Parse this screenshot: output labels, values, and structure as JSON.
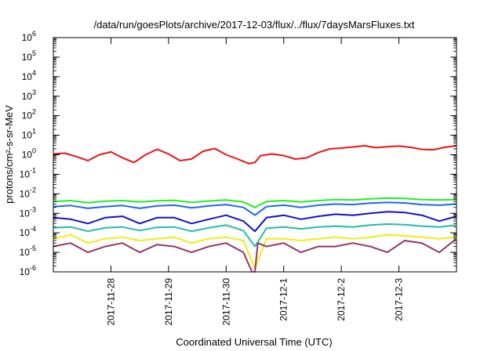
{
  "chart_data": {
    "type": "line",
    "title": "/data/run/goesPlots/archive/2017-12-03/flux/../flux/7daysMarsFluxes.txt",
    "xlabel": "Coordinated Universal Time (UTC)",
    "ylabel": "protons/cm²-s-sr-MeV",
    "yscale": "log",
    "ylim": [
      1e-06,
      1000000.0
    ],
    "xlim": [
      0,
      7
    ],
    "x_tick_values": [
      1,
      2,
      3,
      4,
      5,
      6
    ],
    "x_tick_labels": [
      "2017-11-28",
      "2017-11-29",
      "2017-11-30",
      "2017-12-1",
      "2017-12-2",
      "2017-12-3"
    ],
    "y_tick_exponents": [
      -6,
      -5,
      -4,
      -3,
      -2,
      -1,
      0,
      1,
      2,
      3,
      4,
      5,
      6
    ],
    "grid": false,
    "legend": "none",
    "series": [
      {
        "color": "#ee1111",
        "x": [
          0.0,
          0.2,
          0.4,
          0.6,
          0.8,
          1.0,
          1.2,
          1.4,
          1.6,
          1.8,
          2.0,
          2.2,
          2.4,
          2.6,
          2.8,
          3.0,
          3.2,
          3.4,
          3.5,
          3.6,
          3.8,
          4.0,
          4.2,
          4.4,
          4.6,
          4.8,
          5.0,
          5.2,
          5.4,
          5.6,
          5.8,
          6.0,
          6.2,
          6.4,
          6.6,
          6.8,
          7.0
        ],
        "y": [
          1.1,
          1.2,
          0.8,
          0.5,
          1.0,
          1.4,
          0.7,
          0.4,
          1.0,
          1.9,
          1.1,
          0.5,
          0.6,
          1.5,
          2.1,
          1.0,
          0.6,
          0.35,
          0.4,
          0.9,
          1.1,
          0.9,
          0.6,
          0.7,
          1.3,
          2.0,
          2.2,
          2.5,
          2.9,
          2.3,
          2.6,
          2.8,
          2.4,
          1.9,
          1.8,
          2.4,
          2.9
        ]
      },
      {
        "color": "#22ee22",
        "x": [
          0.0,
          0.3,
          0.6,
          0.9,
          1.2,
          1.5,
          1.8,
          2.1,
          2.4,
          2.7,
          3.0,
          3.3,
          3.5,
          3.7,
          4.0,
          4.3,
          4.6,
          4.9,
          5.2,
          5.5,
          5.8,
          6.1,
          6.4,
          6.7,
          7.0
        ],
        "y": [
          0.004,
          0.0045,
          0.0035,
          0.0042,
          0.0045,
          0.0038,
          0.0044,
          0.0046,
          0.0036,
          0.0043,
          0.0048,
          0.0038,
          0.002,
          0.004,
          0.0045,
          0.0038,
          0.0045,
          0.005,
          0.0048,
          0.0055,
          0.006,
          0.0058,
          0.005,
          0.0048,
          0.005
        ]
      },
      {
        "color": "#2266ee",
        "x": [
          0.0,
          0.3,
          0.6,
          0.9,
          1.2,
          1.5,
          1.8,
          2.1,
          2.4,
          2.7,
          3.0,
          3.3,
          3.5,
          3.7,
          4.0,
          4.3,
          4.6,
          4.9,
          5.2,
          5.5,
          5.8,
          6.1,
          6.4,
          6.7,
          7.0
        ],
        "y": [
          0.0022,
          0.0025,
          0.0018,
          0.0022,
          0.0025,
          0.0018,
          0.0024,
          0.0026,
          0.0019,
          0.0024,
          0.0028,
          0.002,
          0.0008,
          0.0022,
          0.0026,
          0.002,
          0.0026,
          0.003,
          0.0028,
          0.0033,
          0.0036,
          0.0034,
          0.0028,
          0.0026,
          0.003
        ]
      },
      {
        "color": "#1111cc",
        "x": [
          0.0,
          0.3,
          0.6,
          0.9,
          1.2,
          1.5,
          1.8,
          2.1,
          2.4,
          2.7,
          3.0,
          3.3,
          3.5,
          3.7,
          4.0,
          4.3,
          4.6,
          4.9,
          5.2,
          5.5,
          5.8,
          6.1,
          6.4,
          6.7,
          7.0
        ],
        "y": [
          0.0006,
          0.0005,
          0.0003,
          0.0006,
          0.0007,
          0.0003,
          0.0006,
          0.0006,
          0.0003,
          0.0005,
          0.0008,
          0.0004,
          0.00012,
          0.0006,
          0.0008,
          0.0005,
          0.0007,
          0.0009,
          0.0008,
          0.001,
          0.0012,
          0.0011,
          0.0008,
          0.0004,
          0.0007
        ]
      },
      {
        "color": "#22bbaa",
        "x": [
          0.0,
          0.3,
          0.6,
          0.9,
          1.2,
          1.5,
          1.8,
          2.1,
          2.4,
          2.7,
          3.0,
          3.3,
          3.5,
          3.7,
          4.0,
          4.3,
          4.6,
          4.9,
          5.2,
          5.5,
          5.8,
          6.1,
          6.4,
          6.7,
          7.0
        ],
        "y": [
          0.00018,
          0.0002,
          0.00012,
          0.00018,
          0.0002,
          0.00013,
          0.00019,
          0.0002,
          0.00012,
          0.00018,
          0.00025,
          0.00013,
          2e-05,
          0.00017,
          0.0002,
          0.00016,
          0.0002,
          0.00022,
          0.0002,
          0.00025,
          0.00028,
          0.00026,
          0.00022,
          0.0002,
          0.00025
        ]
      },
      {
        "color": "#eeee11",
        "x": [
          0.0,
          0.3,
          0.6,
          0.9,
          1.2,
          1.5,
          1.8,
          2.1,
          2.4,
          2.7,
          3.0,
          3.3,
          3.5,
          3.7,
          4.0,
          4.3,
          4.6,
          4.9,
          5.2,
          5.5,
          5.8,
          6.1,
          6.4,
          6.7,
          7.0
        ],
        "y": [
          5e-05,
          8e-05,
          3e-05,
          5e-05,
          6e-05,
          4e-05,
          5e-05,
          6e-05,
          3e-05,
          5e-05,
          6e-05,
          4e-05,
          1.5e-06,
          5e-05,
          5e-05,
          4e-05,
          5e-05,
          6e-05,
          5e-05,
          6e-05,
          8e-05,
          7e-05,
          6e-05,
          5e-05,
          6e-05
        ]
      },
      {
        "color": "#993366",
        "x": [
          0.0,
          0.3,
          0.6,
          0.9,
          1.2,
          1.5,
          1.8,
          2.1,
          2.4,
          2.7,
          3.0,
          3.3,
          3.45,
          3.5,
          3.55,
          3.7,
          4.0,
          4.3,
          4.6,
          4.9,
          5.2,
          5.5,
          5.8,
          6.1,
          6.4,
          6.7,
          7.0
        ],
        "y": [
          2e-05,
          3e-05,
          1e-05,
          2e-05,
          3e-05,
          1e-05,
          2.5e-05,
          2e-05,
          1e-05,
          2e-05,
          3e-05,
          1e-05,
          1e-06,
          5e-07,
          3e-05,
          2e-05,
          3e-05,
          1e-05,
          2e-05,
          2e-05,
          3e-05,
          2e-05,
          1e-05,
          4e-05,
          3e-05,
          1e-05,
          5e-05
        ]
      }
    ]
  }
}
